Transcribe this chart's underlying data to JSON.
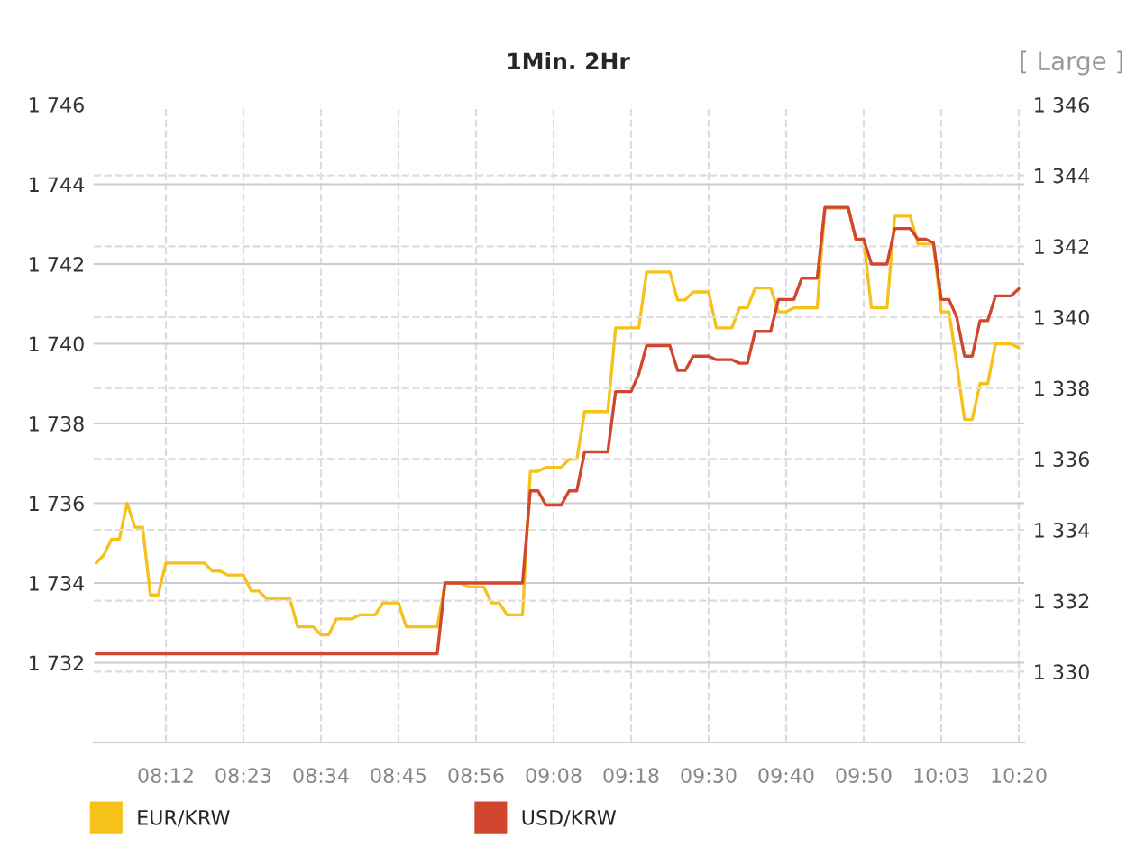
{
  "chart_data": {
    "type": "line",
    "title": "1Min. 2Hr",
    "annotations": [
      "[ Large ]"
    ],
    "categories": [
      null,
      null,
      null,
      null,
      null,
      null,
      null,
      null,
      null,
      "08:12",
      null,
      null,
      null,
      null,
      null,
      null,
      null,
      null,
      null,
      "08:23",
      null,
      null,
      null,
      null,
      null,
      null,
      null,
      null,
      null,
      "08:34",
      null,
      null,
      null,
      null,
      null,
      null,
      null,
      null,
      null,
      "08:45",
      null,
      null,
      null,
      null,
      null,
      null,
      null,
      null,
      null,
      "08:56",
      null,
      null,
      null,
      null,
      null,
      null,
      null,
      null,
      null,
      "09:08",
      null,
      null,
      null,
      null,
      null,
      null,
      null,
      null,
      null,
      "09:18",
      null,
      null,
      null,
      null,
      null,
      null,
      null,
      null,
      null,
      "09:30",
      null,
      null,
      null,
      null,
      null,
      null,
      null,
      null,
      null,
      "09:40",
      null,
      null,
      null,
      null,
      null,
      null,
      null,
      null,
      null,
      "09:50",
      null,
      null,
      null,
      null,
      null,
      null,
      null,
      null,
      null,
      "10:03",
      null,
      null,
      null,
      null,
      null,
      null,
      null,
      null,
      null,
      "10:20"
    ],
    "ylim": [
      1730,
      1746
    ],
    "yticks": [
      {
        "value": 1732,
        "label": "1 732"
      },
      {
        "value": 1734,
        "label": "1 734"
      },
      {
        "value": 1736,
        "label": "1 736"
      },
      {
        "value": 1738,
        "label": "1 738"
      },
      {
        "value": 1740,
        "label": "1 740"
      },
      {
        "value": 1742,
        "label": "1 742"
      },
      {
        "value": 1744,
        "label": "1 744"
      },
      {
        "value": 1746,
        "label": "1 746"
      }
    ],
    "y2lim": [
      1328,
      1346
    ],
    "y2ticks": [
      {
        "value": 1330,
        "label": "1 330"
      },
      {
        "value": 1332,
        "label": "1 332"
      },
      {
        "value": 1334,
        "label": "1 334"
      },
      {
        "value": 1336,
        "label": "1 336"
      },
      {
        "value": 1338,
        "label": "1 338"
      },
      {
        "value": 1340,
        "label": "1 340"
      },
      {
        "value": 1342,
        "label": "1 342"
      },
      {
        "value": 1344,
        "label": "1 344"
      },
      {
        "value": 1346,
        "label": "1 346"
      }
    ],
    "grid": true,
    "legend": "bottom left",
    "marker": "none",
    "line_style": "solid",
    "series": [
      {
        "name": "EUR/KRW",
        "color": "#f5c21b",
        "values": [
          1734.5,
          1734.7,
          1735.1,
          1735.1,
          1736.0,
          1735.4,
          1735.4,
          1733.7,
          1733.7,
          1734.5,
          1734.5,
          1734.5,
          1734.5,
          1734.5,
          1734.5,
          1734.3,
          1734.3,
          1734.2,
          1734.2,
          1734.2,
          1733.8,
          1733.8,
          1733.6,
          1733.6,
          1733.6,
          1733.6,
          1732.9,
          1732.9,
          1732.9,
          1732.7,
          1732.7,
          1733.1,
          1733.1,
          1733.1,
          1733.2,
          1733.2,
          1733.2,
          1733.5,
          1733.5,
          1733.5,
          1732.9,
          1732.9,
          1732.9,
          1732.9,
          1732.9,
          1734.0,
          1734.0,
          1734.0,
          1733.9,
          1733.9,
          1733.9,
          1733.5,
          1733.5,
          1733.2,
          1733.2,
          1733.2,
          1736.8,
          1736.8,
          1736.9,
          1736.9,
          1736.9,
          1737.1,
          1737.1,
          1738.3,
          1738.3,
          1738.3,
          1738.3,
          1740.4,
          1740.4,
          1740.4,
          1740.4,
          1741.8,
          1741.8,
          1741.8,
          1741.8,
          1741.1,
          1741.1,
          1741.3,
          1741.3,
          1741.3,
          1740.4,
          1740.4,
          1740.4,
          1740.9,
          1740.9,
          1741.4,
          1741.4,
          1741.4,
          1740.8,
          1740.8,
          1740.9,
          1740.9,
          1740.9,
          1740.9,
          1743.4,
          1743.4,
          1743.4,
          1743.4,
          1742.6,
          1742.6,
          1740.9,
          1740.9,
          1740.9,
          1743.2,
          1743.2,
          1743.2,
          1742.5,
          1742.5,
          1742.5,
          1740.8,
          1740.8,
          1739.5,
          1738.1,
          1738.1,
          1739.0,
          1739.0,
          1740.0,
          1740.0,
          1740.0,
          1739.9
        ]
      },
      {
        "name": "USD/KRW",
        "color": "#d2462f",
        "axis": "y2",
        "values": [
          1330.5,
          1330.5,
          1330.5,
          1330.5,
          1330.5,
          1330.5,
          1330.5,
          1330.5,
          1330.5,
          1330.5,
          1330.5,
          1330.5,
          1330.5,
          1330.5,
          1330.5,
          1330.5,
          1330.5,
          1330.5,
          1330.5,
          1330.5,
          1330.5,
          1330.5,
          1330.5,
          1330.5,
          1330.5,
          1330.5,
          1330.5,
          1330.5,
          1330.5,
          1330.5,
          1330.5,
          1330.5,
          1330.5,
          1330.5,
          1330.5,
          1330.5,
          1330.5,
          1330.5,
          1330.5,
          1330.5,
          1330.5,
          1330.5,
          1330.5,
          1330.5,
          1330.5,
          1332.5,
          1332.5,
          1332.5,
          1332.5,
          1332.5,
          1332.5,
          1332.5,
          1332.5,
          1332.5,
          1332.5,
          1332.5,
          1335.1,
          1335.1,
          1334.7,
          1334.7,
          1334.7,
          1335.1,
          1335.1,
          1336.2,
          1336.2,
          1336.2,
          1336.2,
          1337.9,
          1337.9,
          1337.9,
          1338.4,
          1339.2,
          1339.2,
          1339.2,
          1339.2,
          1338.5,
          1338.5,
          1338.9,
          1338.9,
          1338.9,
          1338.8,
          1338.8,
          1338.8,
          1338.7,
          1338.7,
          1339.6,
          1339.6,
          1339.6,
          1340.5,
          1340.5,
          1340.5,
          1341.1,
          1341.1,
          1341.1,
          1343.1,
          1343.1,
          1343.1,
          1343.1,
          1342.2,
          1342.2,
          1341.5,
          1341.5,
          1341.5,
          1342.5,
          1342.5,
          1342.5,
          1342.2,
          1342.2,
          1342.1,
          1340.5,
          1340.5,
          1340.0,
          1338.9,
          1338.9,
          1339.9,
          1339.9,
          1340.6,
          1340.6,
          1340.6,
          1340.8
        ]
      }
    ]
  }
}
